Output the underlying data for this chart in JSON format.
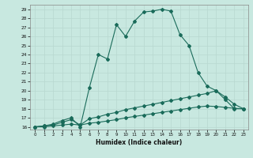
{
  "xlabel": "Humidex (Indice chaleur)",
  "bg_color": "#c8e8e0",
  "grid_color": "#b8d8d0",
  "line_color": "#1a6b5a",
  "xlim_min": -0.5,
  "xlim_max": 23.5,
  "ylim_min": 15.7,
  "ylim_max": 29.5,
  "xticks": [
    0,
    1,
    2,
    3,
    4,
    5,
    6,
    7,
    8,
    9,
    10,
    11,
    12,
    13,
    14,
    15,
    16,
    17,
    18,
    19,
    20,
    21,
    22,
    23
  ],
  "yticks": [
    16,
    17,
    18,
    19,
    20,
    21,
    22,
    23,
    24,
    25,
    26,
    27,
    28,
    29
  ],
  "line1_x": [
    0,
    1,
    2,
    3,
    4,
    5,
    6,
    7,
    8,
    9,
    10,
    11,
    12,
    13,
    14,
    15,
    16,
    17,
    18,
    19,
    20,
    21,
    22,
    23
  ],
  "line1_y": [
    16,
    16.1,
    16.3,
    16.7,
    17.0,
    16.0,
    20.3,
    24.0,
    23.5,
    27.3,
    26.0,
    27.7,
    28.7,
    28.8,
    29.0,
    28.8,
    26.2,
    25.0,
    22.0,
    20.5,
    20.0,
    19.0,
    18.0,
    18.0
  ],
  "line2_x": [
    0,
    1,
    2,
    3,
    4,
    5,
    6,
    7,
    8,
    9,
    10,
    11,
    12,
    13,
    14,
    15,
    16,
    17,
    18,
    19,
    20,
    21,
    22,
    23
  ],
  "line2_y": [
    16,
    16.1,
    16.2,
    16.5,
    16.8,
    16.2,
    16.9,
    17.1,
    17.4,
    17.6,
    17.9,
    18.1,
    18.3,
    18.5,
    18.7,
    18.9,
    19.1,
    19.3,
    19.5,
    19.7,
    20.0,
    19.3,
    18.5,
    18.0
  ],
  "line3_x": [
    0,
    1,
    2,
    3,
    4,
    5,
    6,
    7,
    8,
    9,
    10,
    11,
    12,
    13,
    14,
    15,
    16,
    17,
    18,
    19,
    20,
    21,
    22,
    23
  ],
  "line3_y": [
    16,
    16.0,
    16.1,
    16.2,
    16.3,
    16.2,
    16.4,
    16.5,
    16.65,
    16.8,
    17.0,
    17.15,
    17.3,
    17.45,
    17.6,
    17.75,
    17.9,
    18.05,
    18.2,
    18.3,
    18.25,
    18.15,
    18.05,
    18.0
  ]
}
